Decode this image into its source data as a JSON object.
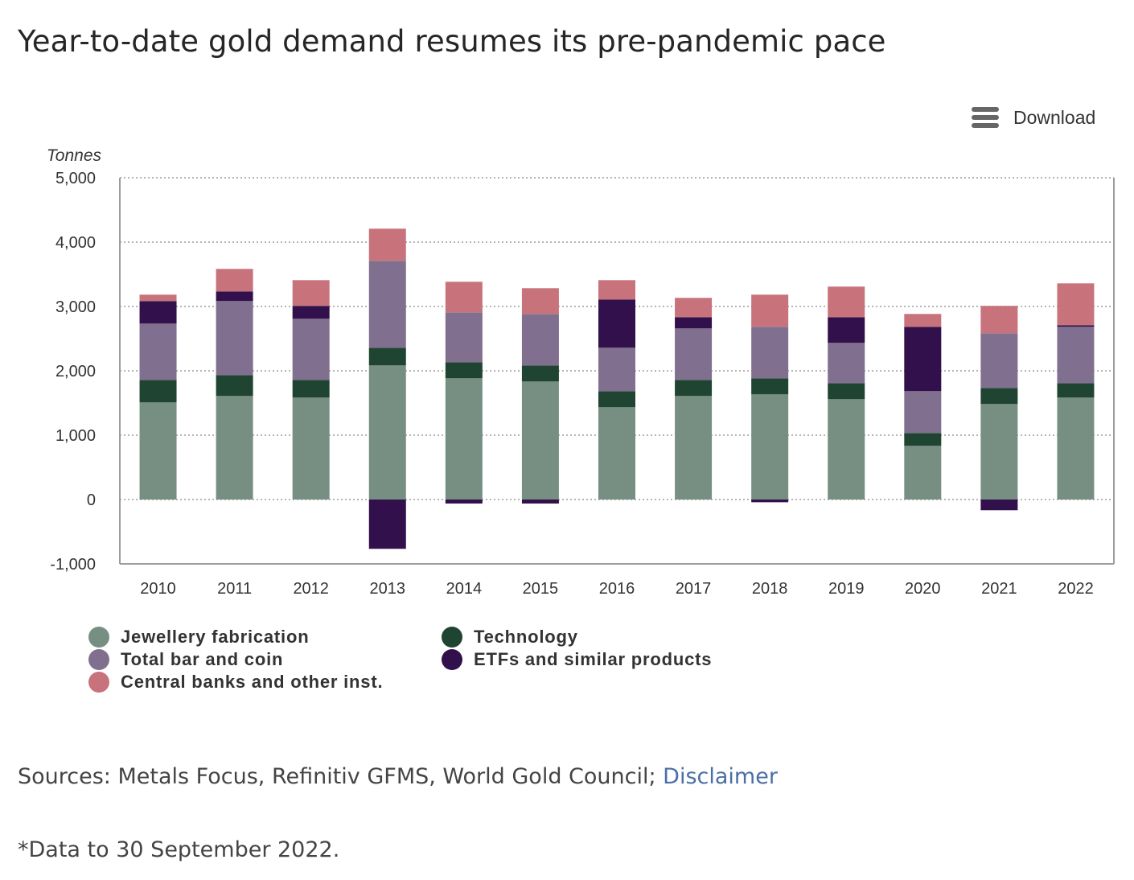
{
  "title": "Year-to-date gold demand resumes its pre-pandemic pace",
  "toolbar": {
    "download_label": "Download",
    "download_icon": "hamburger-menu-icon"
  },
  "chart_data": {
    "type": "bar",
    "stacked": true,
    "title": "Year-to-date gold demand resumes its pre-pandemic pace",
    "xlabel": "",
    "ylabel": "Tonnes",
    "ylim": [
      -1000,
      5000
    ],
    "yticks": [
      -1000,
      0,
      1000,
      2000,
      3000,
      4000,
      5000
    ],
    "ytick_labels": [
      "-1,000",
      "0",
      "1,000",
      "2,000",
      "3,000",
      "4,000",
      "5,000"
    ],
    "grid": true,
    "legend_position": "bottom-left",
    "categories": [
      "2010",
      "2011",
      "2012",
      "2013",
      "2014",
      "2015",
      "2016",
      "2017",
      "2018",
      "2019",
      "2020",
      "2021",
      "2022"
    ],
    "series": [
      {
        "name": "Jewellery fabrication",
        "color": "#778f83",
        "values": [
          1509,
          1609,
          1584,
          2084,
          1884,
          1834,
          1434,
          1609,
          1634,
          1559,
          834,
          1484,
          1584
        ]
      },
      {
        "name": "Technology",
        "color": "#204432",
        "values": [
          350,
          325,
          275,
          275,
          250,
          250,
          250,
          250,
          250,
          250,
          200,
          250,
          225
        ]
      },
      {
        "name": "Total bar and coin",
        "color": "#816f8f",
        "values": [
          875,
          1150,
          950,
          1350,
          775,
          800,
          675,
          800,
          800,
          625,
          650,
          850,
          875
        ]
      },
      {
        "name": "ETFs and similar products",
        "color": "#32104b",
        "values": [
          350,
          150,
          200,
          -766,
          -62,
          -62,
          750,
          175,
          -42,
          400,
          1000,
          -166,
          25
        ]
      },
      {
        "name": "Central banks and other inst.",
        "color": "#c8737b",
        "values": [
          100,
          350,
          400,
          500,
          475,
          400,
          300,
          300,
          500,
          475,
          200,
          425,
          650
        ]
      }
    ]
  },
  "legend": {
    "items": [
      {
        "label": "Jewellery fabrication",
        "color": "#778f83"
      },
      {
        "label": "Technology",
        "color": "#204432"
      },
      {
        "label": "Total bar and coin",
        "color": "#816f8f"
      },
      {
        "label": "ETFs and similar products",
        "color": "#32104b"
      },
      {
        "label": "Central banks and other inst.",
        "color": "#c8737b"
      }
    ]
  },
  "footer": {
    "sources_text": "Sources: Metals Focus, Refinitiv GFMS, World Gold Council; ",
    "disclaimer_link": "Disclaimer",
    "link_color": "#4a6fa5",
    "footnote": "*Data to 30 September 2022."
  }
}
